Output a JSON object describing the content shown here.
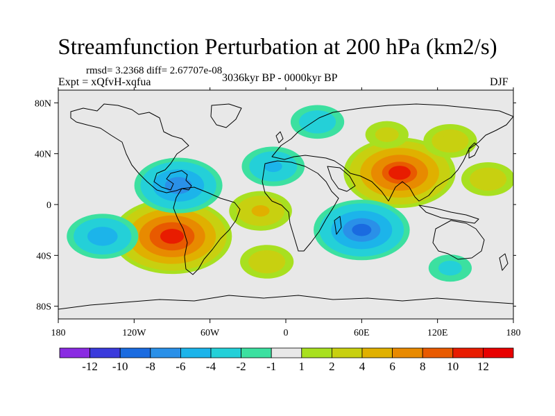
{
  "chart_data": {
    "type": "heatmap",
    "title": "Streamfunction Perturbation at 200 hPa (km2/s)",
    "stats_label": "rmsd= 3.2368 diff= 2.67707e-08",
    "experiment_label": "Expt = xQfvH-xqfua",
    "period_label": "3036kyr BP - 0000kyr BP",
    "season_label": "DJF",
    "xlim": [
      -180,
      180
    ],
    "ylim": [
      -90,
      90
    ],
    "x_ticks": [
      {
        "value": -180,
        "label": "180"
      },
      {
        "value": -120,
        "label": "120W"
      },
      {
        "value": -60,
        "label": "60W"
      },
      {
        "value": 0,
        "label": "0"
      },
      {
        "value": 60,
        "label": "60E"
      },
      {
        "value": 120,
        "label": "120E"
      },
      {
        "value": 180,
        "label": "180"
      }
    ],
    "y_ticks": [
      {
        "value": 80,
        "label": "80N"
      },
      {
        "value": 40,
        "label": "40N"
      },
      {
        "value": 0,
        "label": "0"
      },
      {
        "value": -40,
        "label": "40S"
      },
      {
        "value": -80,
        "label": "80S"
      }
    ],
    "colorbar": {
      "levels": [
        -12,
        -10,
        -8,
        -6,
        -4,
        -2,
        -1,
        1,
        2,
        4,
        6,
        8,
        10,
        12
      ],
      "labels": [
        "-12",
        "-10",
        "-8",
        "-6",
        "-4",
        "-2",
        "-1",
        "1",
        "2",
        "4",
        "6",
        "8",
        "10",
        "12"
      ],
      "colors": [
        "#8a2be2",
        "#3a3adc",
        "#1a6be0",
        "#2a90e8",
        "#1cb4ea",
        "#24d0d8",
        "#3ce0a0",
        "#e8e8e8",
        "#a8e020",
        "#c8d010",
        "#e0b000",
        "#e88a00",
        "#e85a00",
        "#e81c00",
        "#e80000"
      ]
    },
    "anomalies": [
      {
        "lon": -90,
        "lat": -25,
        "value": 11
      },
      {
        "lon": -20,
        "lat": -5,
        "value": 4
      },
      {
        "lon": -15,
        "lat": -45,
        "value": 3
      },
      {
        "lon": 90,
        "lat": 25,
        "value": 10
      },
      {
        "lon": 80,
        "lat": 55,
        "value": 2
      },
      {
        "lon": 160,
        "lat": 20,
        "value": 3
      },
      {
        "lon": 130,
        "lat": 50,
        "value": 3
      },
      {
        "lon": -85,
        "lat": 15,
        "value": -7
      },
      {
        "lon": 60,
        "lat": -20,
        "value": -8
      },
      {
        "lon": -145,
        "lat": -25,
        "value": -5
      },
      {
        "lon": -10,
        "lat": 30,
        "value": -4
      },
      {
        "lon": 25,
        "lat": 65,
        "value": -3
      },
      {
        "lon": 130,
        "lat": -50,
        "value": -2
      }
    ]
  }
}
